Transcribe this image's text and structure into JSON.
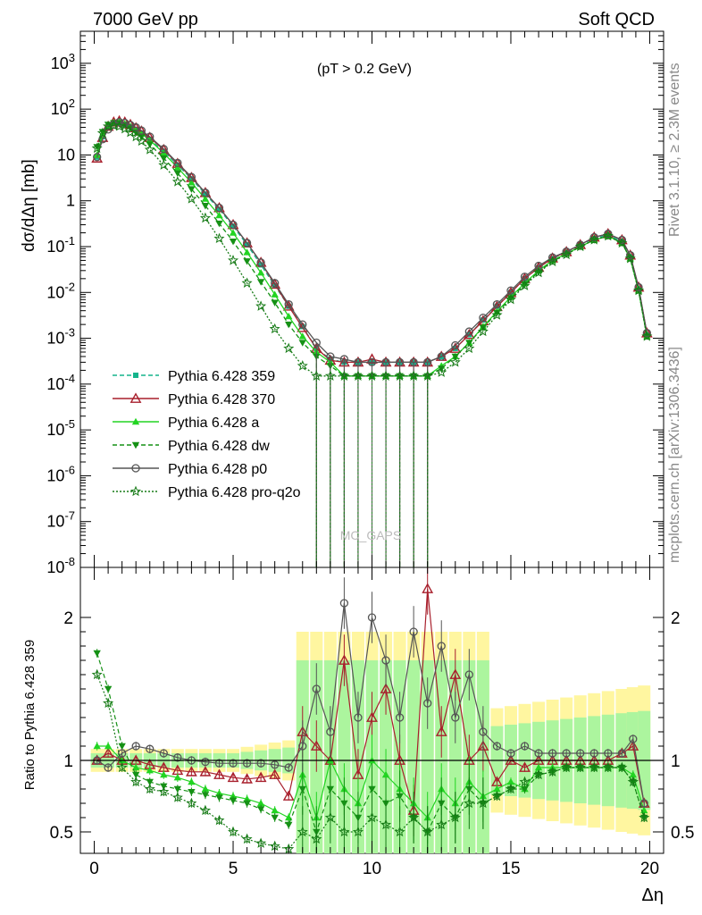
{
  "header": {
    "left": "7000 GeV pp",
    "right": "Soft QCD"
  },
  "side_labels": {
    "rivet": "Rivet 3.1.10, ≥ 2.3M events",
    "mcplots": "mcplots.cern.ch [arXiv:1306.3436]"
  },
  "chart_data": [
    {
      "type": "line",
      "panel": "main",
      "annotation": "(pT > 0.2 GeV)",
      "ylabel": "dσ/dΔη [mb]",
      "yscale": "log",
      "ylim": [
        1e-08,
        5000
      ],
      "xlim": [
        -0.5,
        20.5
      ],
      "grid": false,
      "watermark": "MC_GAPS",
      "legend_position": "left-middle",
      "y_tick_labels": [
        "10^3",
        "10^2",
        "10",
        "1",
        "10^-1",
        "10^-2",
        "10^-3",
        "10^-4",
        "10^-5",
        "10^-6",
        "10^-7",
        "10^-8"
      ],
      "x": [
        0.1,
        0.3,
        0.5,
        0.7,
        0.9,
        1.1,
        1.3,
        1.5,
        1.7,
        2.0,
        2.5,
        3.0,
        3.5,
        4.0,
        4.5,
        5.0,
        5.5,
        6.0,
        6.5,
        7.0,
        7.5,
        8.0,
        8.5,
        9.0,
        9.5,
        10.0,
        10.5,
        11.0,
        11.5,
        12.0,
        12.5,
        13.0,
        13.5,
        14.0,
        14.5,
        15.0,
        15.5,
        16.0,
        16.5,
        17.0,
        17.5,
        18.0,
        18.5,
        19.0,
        19.3,
        19.6,
        19.9
      ],
      "series": [
        {
          "name": "Pythia 6.428 359",
          "color": "#15b48c",
          "dash": "5,3",
          "marker": "square",
          "values": [
            9,
            25,
            40,
            48,
            50,
            47,
            42,
            36,
            30,
            22,
            12,
            6,
            3,
            1.4,
            0.65,
            0.28,
            0.11,
            0.04,
            0.014,
            0.005,
            0.0018,
            0.0006,
            0.00035,
            0.0003,
            0.0003,
            0.0003,
            0.0003,
            0.0003,
            0.0003,
            0.0003,
            0.0004,
            0.0006,
            0.0012,
            0.0025,
            0.005,
            0.01,
            0.02,
            0.035,
            0.055,
            0.075,
            0.11,
            0.15,
            0.18,
            0.13,
            0.06,
            0.012,
            0.0012
          ]
        },
        {
          "name": "Pythia 6.428 370",
          "color": "#a81f2c",
          "dash": "",
          "marker": "triangle-open",
          "values": [
            8.5,
            24,
            42,
            52,
            55,
            52,
            46,
            39,
            33,
            24,
            13,
            6.5,
            3.2,
            1.5,
            0.7,
            0.3,
            0.12,
            0.045,
            0.015,
            0.005,
            0.0017,
            0.0006,
            0.00033,
            0.0003,
            0.0003,
            0.00035,
            0.0003,
            0.0003,
            0.0003,
            0.0003,
            0.0004,
            0.0006,
            0.0012,
            0.0024,
            0.0049,
            0.0099,
            0.02,
            0.035,
            0.056,
            0.077,
            0.11,
            0.16,
            0.19,
            0.14,
            0.065,
            0.013,
            0.0013
          ]
        },
        {
          "name": "Pythia 6.428 a",
          "color": "#22d422",
          "dash": "",
          "marker": "triangle-filled",
          "values": [
            10,
            28,
            44,
            51,
            52,
            48,
            42,
            35,
            29,
            21,
            11,
            5.3,
            2.5,
            1.1,
            0.48,
            0.2,
            0.075,
            0.027,
            0.009,
            0.003,
            0.0011,
            0.0005,
            0.0003,
            0.00015,
            0.00015,
            0.00015,
            0.00015,
            0.00015,
            0.00015,
            0.00015,
            0.00025,
            0.0004,
            0.0008,
            0.0018,
            0.0038,
            0.008,
            0.016,
            0.03,
            0.05,
            0.07,
            0.1,
            0.14,
            0.17,
            0.12,
            0.055,
            0.011,
            0.0011
          ]
        },
        {
          "name": "Pythia 6.428 dw",
          "color": "#159115",
          "dash": "5,3",
          "marker": "triangle-down",
          "values": [
            15,
            32,
            46,
            50,
            50,
            45,
            38,
            31,
            25,
            17,
            8.5,
            4,
            1.8,
            0.78,
            0.32,
            0.13,
            0.048,
            0.017,
            0.006,
            0.002,
            0.0008,
            0.0004,
            0.00025,
            0.00015,
            0.00015,
            0.00015,
            0.00015,
            0.00015,
            0.00015,
            0.00015,
            0.00022,
            0.0004,
            0.0008,
            0.0017,
            0.0036,
            0.0075,
            0.015,
            0.028,
            0.048,
            0.068,
            0.1,
            0.14,
            0.17,
            0.12,
            0.055,
            0.011,
            0.0011
          ]
        },
        {
          "name": "Pythia 6.428 p0",
          "color": "#555555",
          "dash": "",
          "marker": "circle-open",
          "values": [
            9,
            22,
            36,
            46,
            52,
            50,
            45,
            40,
            34,
            25,
            13.5,
            6.7,
            3.3,
            1.5,
            0.7,
            0.3,
            0.12,
            0.045,
            0.016,
            0.0055,
            0.002,
            0.0008,
            0.0004,
            0.00035,
            0.0003,
            0.0003,
            0.0003,
            0.0003,
            0.0003,
            0.0003,
            0.0004,
            0.0007,
            0.0014,
            0.0028,
            0.0055,
            0.011,
            0.022,
            0.038,
            0.058,
            0.078,
            0.11,
            0.16,
            0.19,
            0.14,
            0.065,
            0.013,
            0.0013
          ]
        },
        {
          "name": "Pythia 6.428 pro-q2o",
          "color": "#157a15",
          "dash": "2,2",
          "marker": "star",
          "values": [
            14,
            30,
            42,
            44,
            42,
            37,
            31,
            25,
            20,
            13,
            6,
            2.6,
            1.1,
            0.42,
            0.15,
            0.05,
            0.016,
            0.005,
            0.0016,
            0.0006,
            0.00025,
            0.00015,
            0.00015,
            0.00015,
            0.00015,
            0.00015,
            0.00015,
            0.00015,
            0.00015,
            0.00015,
            0.00018,
            0.0003,
            0.0006,
            0.0014,
            0.0032,
            0.007,
            0.014,
            0.027,
            0.047,
            0.067,
            0.1,
            0.14,
            0.17,
            0.12,
            0.055,
            0.011,
            0.0011
          ]
        }
      ]
    },
    {
      "type": "line",
      "panel": "ratio",
      "ylabel": "Ratio to Pythia 6.428 359",
      "xlabel": "Δη",
      "ylim": [
        0.35,
        2.35
      ],
      "xlim": [
        -0.5,
        20.5
      ],
      "reference_line": 1,
      "y_tick_labels": [
        "0.5",
        "1",
        "2"
      ],
      "x_tick_labels": [
        "0",
        "5",
        "10",
        "15",
        "20"
      ],
      "x": [
        0.1,
        0.5,
        1.0,
        1.5,
        2.0,
        2.5,
        3.0,
        3.5,
        4.0,
        4.5,
        5.0,
        5.5,
        6.0,
        6.5,
        7.0,
        7.5,
        8.0,
        8.5,
        9.0,
        9.5,
        10.0,
        10.5,
        11.0,
        11.5,
        12.0,
        12.5,
        13.0,
        13.5,
        14.0,
        14.5,
        15.0,
        15.5,
        16.0,
        16.5,
        17.0,
        17.5,
        18.0,
        18.5,
        19.0,
        19.4,
        19.8
      ],
      "series": [
        {
          "name": "Pythia 6.428 370",
          "values": [
            1.0,
            1.05,
            1.0,
            1.0,
            0.97,
            0.95,
            0.93,
            0.92,
            0.92,
            0.9,
            0.88,
            0.87,
            0.88,
            0.9,
            0.75,
            1.2,
            1.1,
            1.0,
            1.7,
            0.9,
            1.3,
            1.5,
            1.0,
            0.65,
            2.2,
            1.2,
            1.6,
            1.0,
            1.1,
            0.85,
            1.0,
            0.95,
            1.0,
            1.0,
            1.0,
            1.0,
            1.0,
            1.0,
            1.05,
            1.1,
            0.7
          ]
        },
        {
          "name": "Pythia 6.428 a",
          "values": [
            1.1,
            1.1,
            1.0,
            0.95,
            0.93,
            0.9,
            0.88,
            0.85,
            0.8,
            0.77,
            0.75,
            0.73,
            0.7,
            0.65,
            0.6,
            0.9,
            0.6,
            1.0,
            0.8,
            0.7,
            1.0,
            0.9,
            0.8,
            0.7,
            0.6,
            0.8,
            0.7,
            0.85,
            0.75,
            0.8,
            0.85,
            0.8,
            0.95,
            0.95,
            0.95,
            0.95,
            0.95,
            0.95,
            0.95,
            0.9,
            0.65
          ]
        },
        {
          "name": "Pythia 6.428 dw",
          "values": [
            1.75,
            1.5,
            1.1,
            0.9,
            0.85,
            0.82,
            0.8,
            0.78,
            0.76,
            0.74,
            0.72,
            0.7,
            0.66,
            0.6,
            0.55,
            0.8,
            0.5,
            0.8,
            0.7,
            0.6,
            0.8,
            0.7,
            0.75,
            0.6,
            0.5,
            0.7,
            0.6,
            0.8,
            0.7,
            0.75,
            0.8,
            0.8,
            0.9,
            0.92,
            0.95,
            0.95,
            0.95,
            0.95,
            0.95,
            0.85,
            0.6
          ]
        },
        {
          "name": "Pythia 6.428 p0",
          "values": [
            1.0,
            0.95,
            1.05,
            1.1,
            1.08,
            1.05,
            1.02,
            1.0,
            0.99,
            0.98,
            0.98,
            0.98,
            0.98,
            0.97,
            0.95,
            1.1,
            1.5,
            1.2,
            2.1,
            1.3,
            2.0,
            1.7,
            1.3,
            1.9,
            1.4,
            1.8,
            1.3,
            1.6,
            1.2,
            1.1,
            1.05,
            1.1,
            1.05,
            1.05,
            1.05,
            1.05,
            1.05,
            1.05,
            1.05,
            1.15,
            0.7
          ]
        },
        {
          "name": "Pythia 6.428 pro-q2o",
          "values": [
            1.6,
            1.4,
            0.95,
            0.85,
            0.8,
            0.78,
            0.74,
            0.7,
            0.65,
            0.58,
            0.5,
            0.45,
            0.42,
            0.4,
            0.38,
            0.5,
            0.45,
            0.6,
            0.5,
            0.5,
            0.6,
            0.55,
            0.5,
            0.6,
            0.5,
            0.55,
            0.6,
            0.7,
            0.7,
            0.75,
            0.8,
            0.85,
            0.9,
            0.92,
            0.95,
            0.95,
            0.95,
            0.95,
            0.95,
            0.85,
            0.6
          ]
        }
      ]
    }
  ]
}
